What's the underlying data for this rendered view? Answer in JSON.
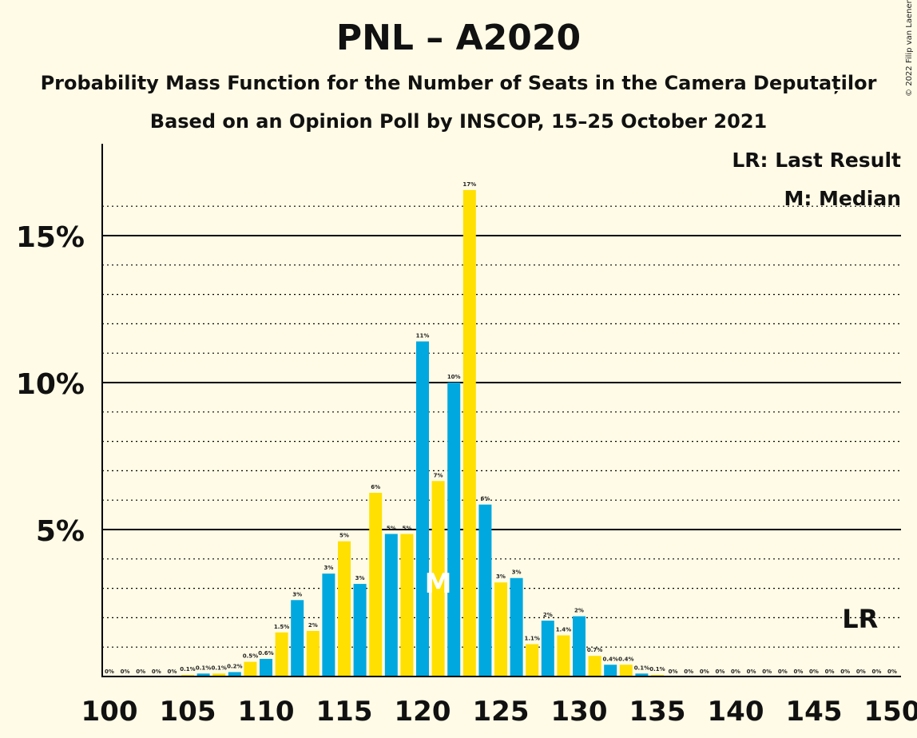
{
  "header": {
    "title": "PNL – A2020",
    "subtitle": "Probability Mass Function for the Number of Seats in the Camera Deputaților",
    "subtitle2": "Based on an Opinion Poll by INSCOP, 15–25 October 2021",
    "copyright": "© 2022 Filip van Laenen"
  },
  "legend": {
    "lr": "LR: Last Result",
    "median": "M: Median"
  },
  "markers": {
    "median_label": "M",
    "median_seat": 121,
    "last_result_label": "LR",
    "last_result_seat": 148
  },
  "colors": {
    "blue": "#00A8E0",
    "yellow": "#FFE000",
    "background": "#FFFBE6"
  },
  "chart_data": {
    "type": "bar",
    "xlabel": "",
    "ylabel": "",
    "xlim": [
      100,
      150
    ],
    "ylim": [
      0,
      18
    ],
    "x_ticks": [
      100,
      105,
      110,
      115,
      120,
      125,
      130,
      135,
      140,
      145,
      150
    ],
    "y_ticks": [
      {
        "value": 5,
        "label": "5%"
      },
      {
        "value": 10,
        "label": "10%"
      },
      {
        "value": 15,
        "label": "15%"
      }
    ],
    "grid": "dotted every 1%, solid at 5%, 10%, 15%",
    "seats": [
      100,
      101,
      102,
      103,
      104,
      105,
      106,
      107,
      108,
      109,
      110,
      111,
      112,
      113,
      114,
      115,
      116,
      117,
      118,
      119,
      120,
      121,
      122,
      123,
      124,
      125,
      126,
      127,
      128,
      129,
      130,
      131,
      132,
      133,
      134,
      135,
      136,
      137,
      138,
      139,
      140,
      141,
      142,
      143,
      144,
      145,
      146,
      147,
      148,
      149,
      150
    ],
    "values": [
      0,
      0,
      0,
      0,
      0,
      0.05,
      0.1,
      0.1,
      0.15,
      0.5,
      0.6,
      1.5,
      2.6,
      1.55,
      3.5,
      4.6,
      3.15,
      6.25,
      4.85,
      4.85,
      11.4,
      6.65,
      10,
      16.55,
      5.85,
      3.2,
      3.35,
      1.1,
      1.9,
      1.4,
      2.05,
      0.7,
      0.4,
      0.4,
      0.1,
      0.05,
      0,
      0,
      0,
      0,
      0,
      0,
      0,
      0,
      0,
      0,
      0,
      0,
      0,
      0,
      0
    ],
    "labels": [
      "0%",
      "0%",
      "0%",
      "0%",
      "0%",
      "0.1%",
      "0.1%",
      "0.1%",
      "0.2%",
      "0.5%",
      "0.6%",
      "1.5%",
      "3%",
      "2%",
      "3%",
      "5%",
      "3%",
      "6%",
      "5%",
      "5%",
      "11%",
      "7%",
      "10%",
      "17%",
      "6%",
      "3%",
      "3%",
      "1.1%",
      "2%",
      "1.4%",
      "2%",
      "0.7%",
      "0.4%",
      "0.4%",
      "0.1%",
      "0.1%",
      "0%",
      "0%",
      "0%",
      "0%",
      "0%",
      "0%",
      "0%",
      "0%",
      "0%",
      "0%",
      "0%",
      "0%",
      "0%",
      "0%",
      "0%"
    ]
  }
}
